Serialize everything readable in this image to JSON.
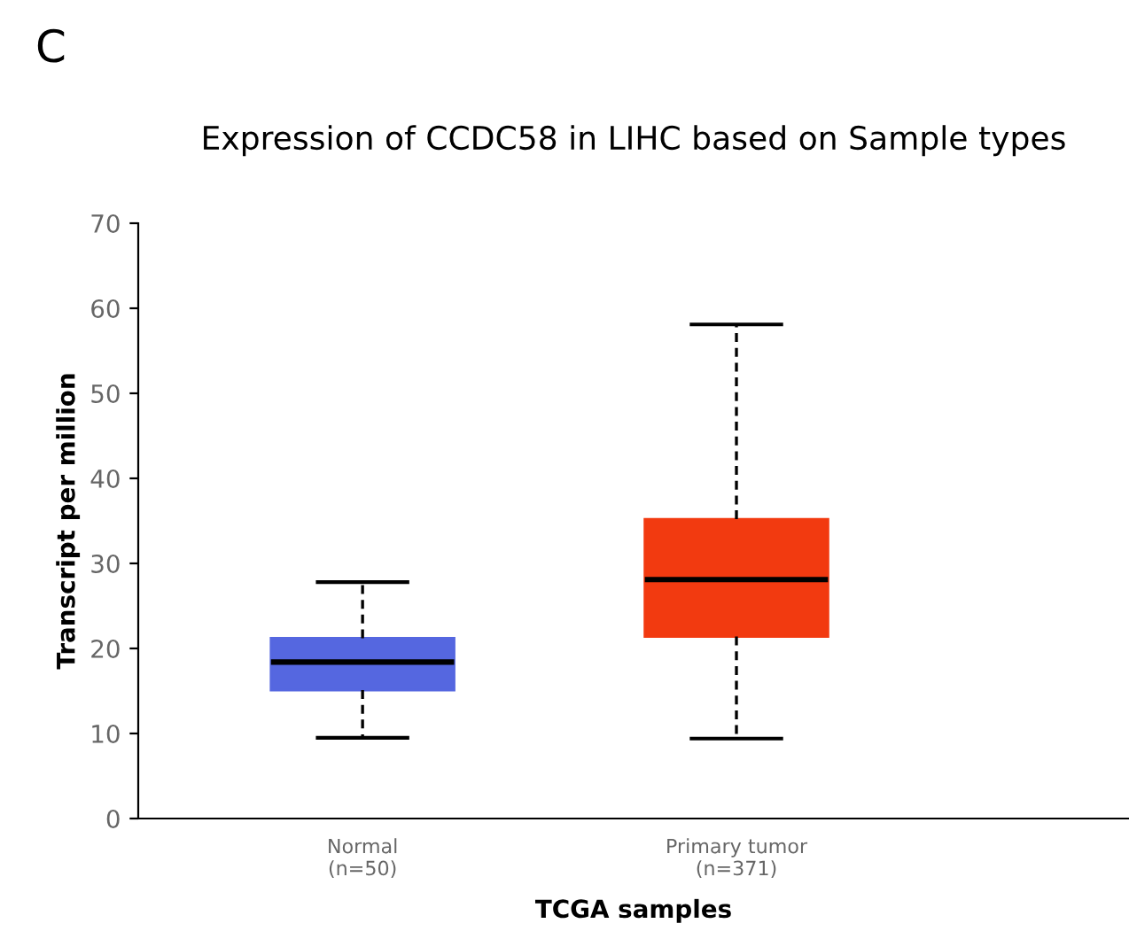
{
  "chart_data": {
    "type": "box",
    "title": "Expression of CCDC58 in LIHC based on Sample types",
    "xlabel": "TCGA samples",
    "ylabel": "Transcript per million",
    "annotations": [
      "C"
    ],
    "categories": [
      "Normal\n(n=50)",
      "Primary tumor\n(n=371)"
    ],
    "colors": [
      "#5567e0",
      "#f23a10"
    ],
    "boxes": [
      {
        "low": 9.5,
        "q1": 15.1,
        "median": 18.4,
        "q3": 21.2,
        "high": 27.8
      },
      {
        "low": 9.4,
        "q1": 21.4,
        "median": 28.1,
        "q3": 35.2,
        "high": 58.1
      }
    ],
    "ylim": [
      0,
      70
    ],
    "yticks": [
      0,
      10,
      20,
      30,
      40,
      50,
      60,
      70
    ],
    "grid": false,
    "legend": false
  }
}
